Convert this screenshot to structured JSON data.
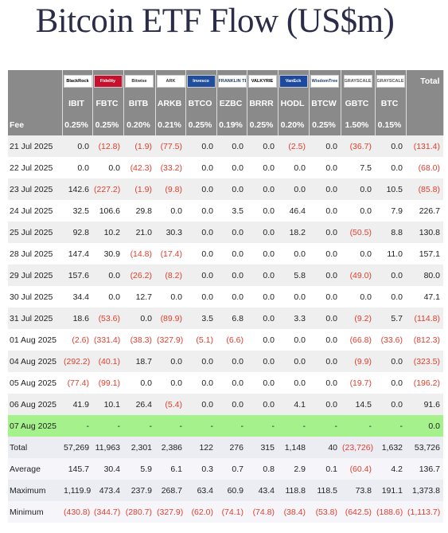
{
  "title": "Bitcoin ETF Flow (US$m)",
  "header": {
    "logos": [
      "BlackRock",
      "Fidelity",
      "Bitwise",
      "ARK",
      "Invesco",
      "FRANKLIN TEMPLETON",
      "VALKYRIE",
      "VanEck",
      "WisdomTree",
      "GRAYSCALE",
      "GRAYSCALE"
    ],
    "total": "Total",
    "tickers": [
      "IBIT",
      "FBTC",
      "BITB",
      "ARKB",
      "BTCO",
      "EZBC",
      "BRRR",
      "HODL",
      "BTCW",
      "GBTC",
      "BTC"
    ],
    "fee_label": "Fee",
    "fees": [
      "0.25%",
      "0.25%",
      "0.20%",
      "0.21%",
      "0.25%",
      "0.19%",
      "0.25%",
      "0.20%",
      "0.25%",
      "1.50%",
      "0.15%"
    ]
  },
  "rows": [
    {
      "label": "21 Jul 2025",
      "cells": [
        "0.0",
        "(12.8)",
        "(1.9)",
        "(77.5)",
        "0.0",
        "0.0",
        "0.0",
        "(2.5)",
        "0.0",
        "(36.7)",
        "0.0",
        "(131.4)"
      ]
    },
    {
      "label": "22 Jul 2025",
      "cells": [
        "0.0",
        "0.0",
        "(42.3)",
        "(33.2)",
        "0.0",
        "0.0",
        "0.0",
        "0.0",
        "0.0",
        "7.5",
        "0.0",
        "(68.0)"
      ]
    },
    {
      "label": "23 Jul 2025",
      "cells": [
        "142.6",
        "(227.2)",
        "(1.9)",
        "(9.8)",
        "0.0",
        "0.0",
        "0.0",
        "0.0",
        "0.0",
        "0.0",
        "10.5",
        "(85.8)"
      ]
    },
    {
      "label": "24 Jul 2025",
      "cells": [
        "32.5",
        "106.6",
        "29.8",
        "0.0",
        "0.0",
        "3.5",
        "0.0",
        "46.4",
        "0.0",
        "0.0",
        "7.9",
        "226.7"
      ]
    },
    {
      "label": "25 Jul 2025",
      "cells": [
        "92.8",
        "10.2",
        "21.0",
        "30.3",
        "0.0",
        "0.0",
        "0.0",
        "18.2",
        "0.0",
        "(50.5)",
        "8.8",
        "130.8"
      ]
    },
    {
      "label": "28 Jul 2025",
      "cells": [
        "147.4",
        "30.9",
        "(14.8)",
        "(17.4)",
        "0.0",
        "0.0",
        "0.0",
        "0.0",
        "0.0",
        "0.0",
        "11.0",
        "157.1"
      ]
    },
    {
      "label": "29 Jul 2025",
      "cells": [
        "157.6",
        "0.0",
        "(26.2)",
        "(8.2)",
        "0.0",
        "0.0",
        "0.0",
        "5.8",
        "0.0",
        "(49.0)",
        "0.0",
        "80.0"
      ]
    },
    {
      "label": "30 Jul 2025",
      "cells": [
        "34.4",
        "0.0",
        "12.7",
        "0.0",
        "0.0",
        "0.0",
        "0.0",
        "0.0",
        "0.0",
        "0.0",
        "0.0",
        "47.1"
      ]
    },
    {
      "label": "31 Jul 2025",
      "cells": [
        "18.6",
        "(53.6)",
        "0.0",
        "(89.9)",
        "3.5",
        "6.8",
        "0.0",
        "3.3",
        "0.0",
        "(9.2)",
        "5.7",
        "(114.8)"
      ]
    },
    {
      "label": "01 Aug 2025",
      "cells": [
        "(2.6)",
        "(331.4)",
        "(38.3)",
        "(327.9)",
        "(5.1)",
        "(6.6)",
        "0.0",
        "0.0",
        "0.0",
        "(66.8)",
        "(33.6)",
        "(812.3)"
      ]
    },
    {
      "label": "04 Aug 2025",
      "cells": [
        "(292.2)",
        "(40.1)",
        "18.7",
        "0.0",
        "0.0",
        "0.0",
        "0.0",
        "0.0",
        "0.0",
        "(9.9)",
        "0.0",
        "(323.5)"
      ]
    },
    {
      "label": "05 Aug 2025",
      "cells": [
        "(77.4)",
        "(99.1)",
        "0.0",
        "0.0",
        "0.0",
        "0.0",
        "0.0",
        "0.0",
        "0.0",
        "(19.7)",
        "0.0",
        "(196.2)"
      ]
    },
    {
      "label": "06 Aug 2025",
      "cells": [
        "41.9",
        "10.1",
        "26.4",
        "(5.4)",
        "0.0",
        "0.0",
        "0.0",
        "4.1",
        "0.0",
        "14.5",
        "0.0",
        "91.6"
      ]
    },
    {
      "label": "07 Aug 2025",
      "cells": [
        "-",
        "-",
        "-",
        "-",
        "-",
        "-",
        "-",
        "-",
        "-",
        "-",
        "-",
        "0.0"
      ]
    }
  ],
  "stats": [
    {
      "label": "Total",
      "cells": [
        "57,269",
        "11,963",
        "2,301",
        "2,386",
        "122",
        "276",
        "315",
        "1,148",
        "40",
        "(23,726)",
        "1,632",
        "53,726"
      ]
    },
    {
      "label": "Average",
      "cells": [
        "145.7",
        "30.4",
        "5.9",
        "6.1",
        "0.3",
        "0.7",
        "0.8",
        "2.9",
        "0.1",
        "(60.4)",
        "4.2",
        "136.7"
      ]
    },
    {
      "label": "Maximum",
      "cells": [
        "1,119.9",
        "473.4",
        "237.9",
        "268.7",
        "63.4",
        "60.9",
        "43.4",
        "118.8",
        "118.5",
        "73.8",
        "191.1",
        "1,373.8"
      ]
    },
    {
      "label": "Minimum",
      "cells": [
        "(430.8)",
        "(344.7)",
        "(280.7)",
        "(327.9)",
        "(62.0)",
        "(74.1)",
        "(74.8)",
        "(38.4)",
        "(53.8)",
        "(642.5)",
        "(188.6)",
        "(1,113.7)"
      ]
    }
  ]
}
